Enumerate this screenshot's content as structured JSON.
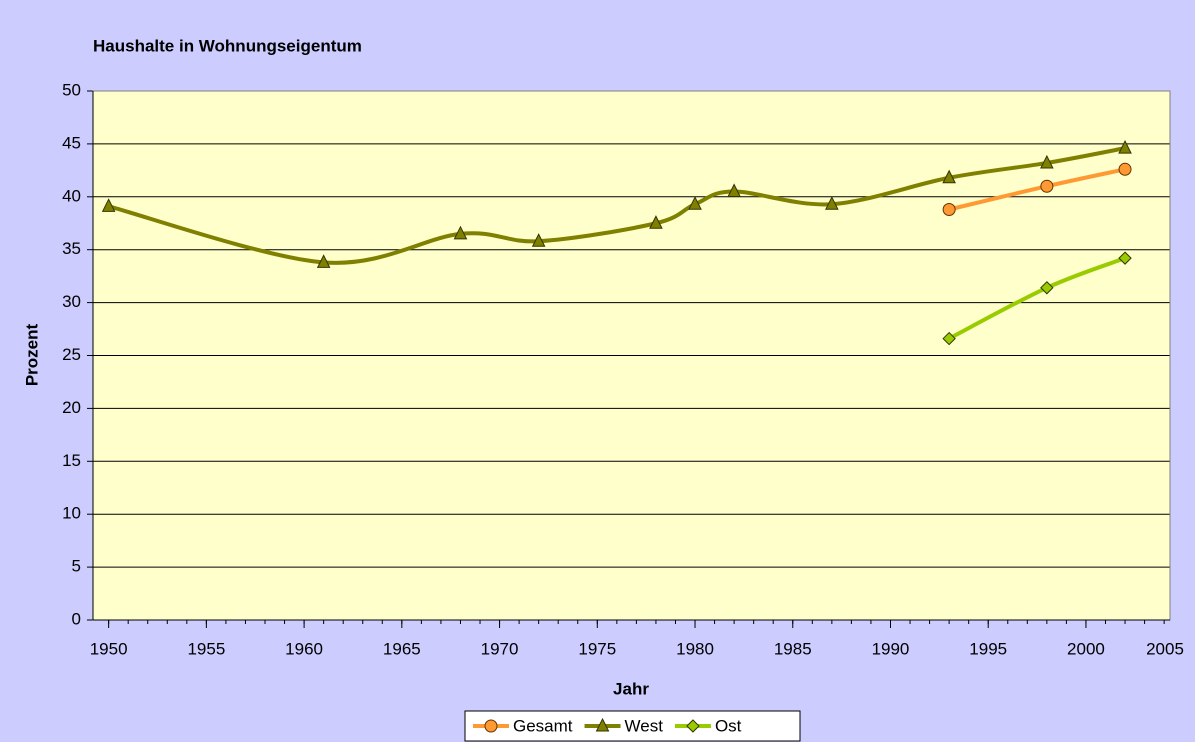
{
  "chart_data": {
    "type": "line",
    "title": "Haushalte in Wohnungseigentum",
    "x_label": "Jahr",
    "y_label": "Prozent",
    "xlim": [
      1949.2,
      2004.3
    ],
    "xticks": [
      1950,
      1955,
      1960,
      1965,
      1970,
      1975,
      1980,
      1985,
      1990,
      1995,
      2000,
      2005
    ],
    "ylim": [
      0,
      50
    ],
    "yticks": [
      0,
      5,
      10,
      15,
      20,
      25,
      30,
      35,
      40,
      45,
      50
    ],
    "grid": true,
    "smooth": true,
    "legend": "bottom",
    "series": [
      {
        "name": "Gesamt",
        "color": "#ff9933",
        "marker": "circle",
        "x": [
          1993,
          1998,
          2002
        ],
        "values": [
          38.8,
          41.0,
          42.6
        ]
      },
      {
        "name": "West",
        "color": "#808000",
        "marker": "triangle",
        "x": [
          1950,
          1961,
          1968,
          1972,
          1978,
          1980,
          1982,
          1987,
          1993,
          1998,
          2002
        ],
        "values": [
          39.1,
          33.8,
          36.5,
          35.8,
          37.5,
          39.3,
          40.5,
          39.3,
          41.8,
          43.2,
          44.6
        ]
      },
      {
        "name": "Ost",
        "color": "#99cc00",
        "marker": "diamond",
        "x": [
          1993,
          1998,
          2002
        ],
        "values": [
          26.6,
          31.4,
          34.2
        ]
      }
    ]
  }
}
